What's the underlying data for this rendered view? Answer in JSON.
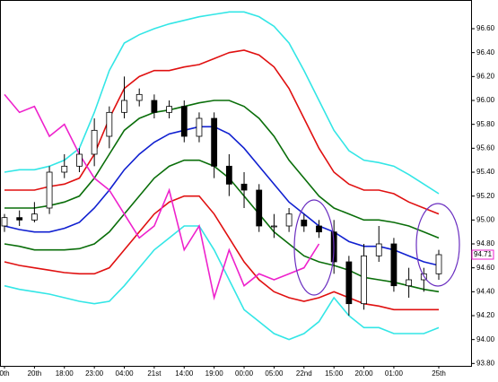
{
  "chart_data": {
    "type": "candlestick",
    "categories": [
      "0th",
      null,
      "20th",
      null,
      "18:00",
      null,
      "23:00",
      null,
      "04:00",
      null,
      "21st",
      null,
      "14:00",
      null,
      "19:00",
      null,
      "00:00",
      null,
      "05:00",
      null,
      "22nd",
      null,
      "15:00",
      null,
      "20:00",
      null,
      "01:00",
      null,
      null,
      "25th"
    ],
    "open": [
      94.95,
      95.02,
      95.0,
      95.1,
      95.4,
      95.45,
      95.55,
      95.7,
      95.9,
      96.0,
      96.0,
      95.9,
      95.95,
      95.7,
      95.85,
      95.45,
      95.3,
      95.25,
      94.95,
      94.95,
      95.0,
      94.95,
      94.9,
      94.65,
      94.3,
      94.7,
      94.8,
      94.45,
      94.5,
      94.55
    ],
    "high": [
      95.05,
      95.08,
      95.15,
      95.45,
      95.55,
      95.6,
      95.85,
      95.95,
      96.2,
      96.1,
      96.05,
      96.0,
      96.0,
      95.9,
      95.9,
      95.55,
      95.4,
      95.3,
      95.05,
      95.1,
      95.05,
      95.0,
      95.0,
      94.7,
      94.8,
      94.95,
      94.85,
      94.6,
      94.6,
      94.75
    ],
    "low": [
      94.9,
      94.95,
      94.98,
      95.05,
      95.35,
      95.4,
      95.45,
      95.6,
      95.85,
      95.95,
      95.85,
      95.85,
      95.65,
      95.65,
      95.35,
      95.2,
      95.1,
      94.9,
      94.85,
      94.9,
      94.9,
      94.85,
      94.55,
      94.2,
      94.25,
      94.65,
      94.4,
      94.35,
      94.4,
      94.5
    ],
    "close": [
      95.02,
      95.0,
      95.05,
      95.4,
      95.45,
      95.55,
      95.75,
      95.9,
      96.0,
      96.05,
      95.9,
      95.95,
      95.7,
      95.85,
      95.45,
      95.3,
      95.25,
      94.95,
      94.95,
      95.05,
      94.95,
      94.9,
      94.65,
      94.3,
      94.7,
      94.8,
      94.45,
      94.5,
      94.55,
      94.71
    ],
    "up_color": "#ffffff",
    "down_color": "#000000",
    "lines": [
      {
        "color": "#33e6e6",
        "values": [
          95.4,
          95.42,
          95.42,
          95.45,
          95.5,
          95.6,
          95.9,
          96.25,
          96.48,
          96.55,
          96.6,
          96.64,
          96.67,
          96.7,
          96.72,
          96.74,
          96.74,
          96.7,
          96.62,
          96.48,
          96.25,
          96.0,
          95.75,
          95.58,
          95.5,
          95.48,
          95.45,
          95.38,
          95.3,
          95.22
        ]
      },
      {
        "color": "#e01010",
        "values": [
          95.25,
          95.25,
          95.25,
          95.28,
          95.3,
          95.35,
          95.55,
          95.85,
          96.1,
          96.2,
          96.25,
          96.25,
          96.28,
          96.3,
          96.35,
          96.4,
          96.42,
          96.38,
          96.28,
          96.1,
          95.85,
          95.6,
          95.4,
          95.3,
          95.25,
          95.25,
          95.22,
          95.15,
          95.1,
          95.05
        ]
      },
      {
        "color": "#0a6e0a",
        "values": [
          95.1,
          95.1,
          95.1,
          95.12,
          95.15,
          95.2,
          95.35,
          95.55,
          95.75,
          95.85,
          95.9,
          95.92,
          95.95,
          95.98,
          96.0,
          96.0,
          95.95,
          95.85,
          95.7,
          95.5,
          95.35,
          95.2,
          95.1,
          95.05,
          95.0,
          95.0,
          94.98,
          94.95,
          94.9,
          94.85
        ]
      },
      {
        "color": "#1020d0",
        "values": [
          94.95,
          94.92,
          94.9,
          94.9,
          94.93,
          94.98,
          95.1,
          95.25,
          95.42,
          95.55,
          95.65,
          95.72,
          95.75,
          95.78,
          95.78,
          95.72,
          95.6,
          95.45,
          95.3,
          95.15,
          95.05,
          94.95,
          94.9,
          94.82,
          94.78,
          94.78,
          94.75,
          94.7,
          94.65,
          94.62
        ]
      },
      {
        "color": "#0a6e0a",
        "values": [
          94.8,
          94.78,
          94.75,
          94.75,
          94.75,
          94.76,
          94.8,
          94.9,
          95.05,
          95.2,
          95.35,
          95.45,
          95.5,
          95.5,
          95.45,
          95.35,
          95.2,
          95.05,
          94.9,
          94.8,
          94.7,
          94.65,
          94.62,
          94.58,
          94.52,
          94.5,
          94.48,
          94.45,
          94.42,
          94.4
        ]
      },
      {
        "color": "#e01010",
        "values": [
          94.65,
          94.62,
          94.6,
          94.58,
          94.56,
          94.55,
          94.55,
          94.6,
          94.75,
          94.9,
          95.05,
          95.15,
          95.2,
          95.2,
          95.05,
          94.85,
          94.65,
          94.5,
          94.4,
          94.35,
          94.32,
          94.35,
          94.4,
          94.35,
          94.3,
          94.28,
          94.25,
          94.25,
          94.25,
          94.25
        ]
      },
      {
        "color": "#33e6e6",
        "values": [
          94.45,
          94.42,
          94.4,
          94.38,
          94.35,
          94.32,
          94.3,
          94.32,
          94.45,
          94.6,
          94.75,
          94.85,
          94.95,
          94.95,
          94.75,
          94.5,
          94.25,
          94.15,
          94.05,
          94.0,
          94.05,
          94.15,
          94.35,
          94.2,
          94.1,
          94.1,
          94.05,
          94.05,
          94.05,
          94.1
        ]
      },
      {
        "color": "#ee22cc",
        "values": [
          96.05,
          95.9,
          95.95,
          95.7,
          95.8,
          95.55,
          95.35,
          95.25,
          95.05,
          94.85,
          94.95,
          95.25,
          94.75,
          94.95,
          94.35,
          94.75,
          94.45,
          94.55,
          94.5,
          94.55,
          94.6,
          94.8,
          null,
          null,
          null,
          null,
          null,
          null,
          null,
          null
        ]
      }
    ],
    "last_price_label": "94.71",
    "ylim": [
      93.78,
      96.84
    ],
    "yticks": [
      {
        "value": 93.8,
        "label": "93.80"
      },
      {
        "value": 94,
        "label": "94.00"
      },
      {
        "value": 94.2,
        "label": "94.20"
      },
      {
        "value": 94.4,
        "label": "94.40"
      },
      {
        "value": 94.6,
        "label": "94.60"
      },
      {
        "value": 94.8,
        "label": "94.80"
      },
      {
        "value": 95,
        "label": "95.00"
      },
      {
        "value": 95.2,
        "label": "95.20"
      },
      {
        "value": 95.4,
        "label": "95.40"
      },
      {
        "value": 95.6,
        "label": "95.60"
      },
      {
        "value": 95.8,
        "label": "95.80"
      },
      {
        "value": 96,
        "label": "96.00"
      },
      {
        "value": 96.2,
        "label": "96.20"
      },
      {
        "value": 96.4,
        "label": "96.40"
      },
      {
        "value": 96.6,
        "label": "96.60"
      }
    ],
    "grid": false
  }
}
